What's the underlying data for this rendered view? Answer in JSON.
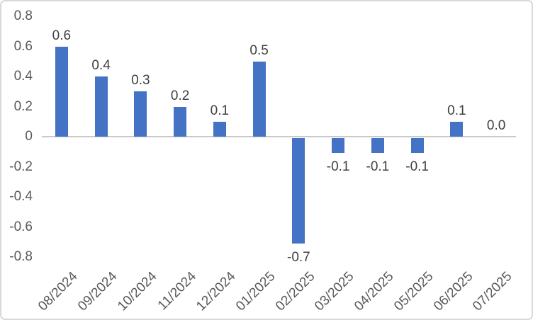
{
  "chart_data": {
    "type": "bar",
    "categories": [
      "08/2024",
      "09/2024",
      "10/2024",
      "11/2024",
      "12/2024",
      "01/2025",
      "02/2025",
      "03/2025",
      "04/2025",
      "05/2025",
      "06/2025",
      "07/2025"
    ],
    "values": [
      0.6,
      0.4,
      0.3,
      0.2,
      0.1,
      0.5,
      -0.7,
      -0.1,
      -0.1,
      -0.1,
      0.1,
      0.0
    ],
    "data_labels": [
      "0.6",
      "0.4",
      "0.3",
      "0.2",
      "0.1",
      "0.5",
      "-0.7",
      "-0.1",
      "-0.1",
      "-0.1",
      "0.1",
      "0.0"
    ],
    "y_ticks": [
      0.8,
      0.6,
      0.4,
      0.2,
      0,
      -0.2,
      -0.4,
      -0.6,
      -0.8
    ],
    "y_tick_labels": [
      "0.8",
      "0.6",
      "0.4",
      "0.2",
      "0",
      "-0.2",
      "-0.4",
      "-0.6",
      "-0.8"
    ],
    "ylim": [
      -0.8,
      0.8
    ],
    "gridlines": false,
    "legend": false,
    "x_label_rotation_deg": 45,
    "bar_color": "#4472C4",
    "axis_line_color": "#C9C9C9",
    "data_label_color": "#404040",
    "tick_label_color": "#595959",
    "frame_color": "#D9D9D9"
  }
}
